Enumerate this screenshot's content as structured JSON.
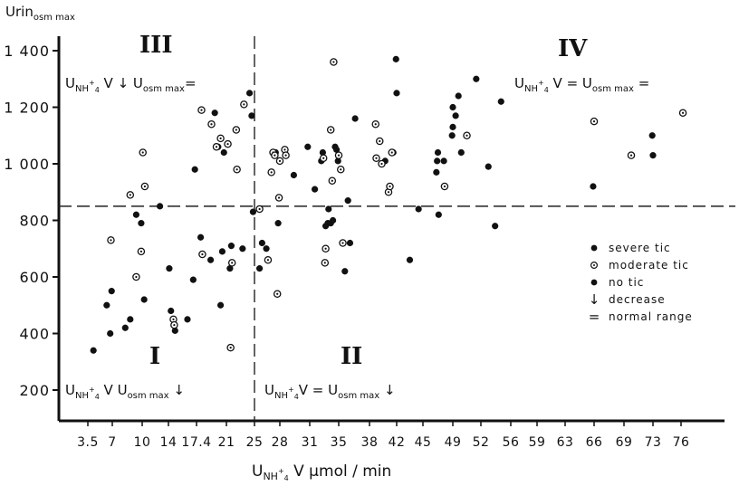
{
  "chart_data": {
    "type": "scatter",
    "title": "",
    "ylabel": "Urin osm max",
    "xlabel": "U NH4+ V  µmol / min",
    "ylim": [
      100,
      1450
    ],
    "yticks": [
      200,
      400,
      600,
      800,
      1000,
      1200,
      1400
    ],
    "ytick_labels": [
      "200",
      "400",
      "600",
      "800",
      "1 000",
      "1 200",
      "1 400"
    ],
    "xticks": [
      "3.5",
      "7",
      "10",
      "14",
      "17.4",
      "21",
      "25",
      "28",
      "31",
      "35",
      "38",
      "42",
      "45",
      "49",
      "52",
      "56",
      "59",
      "63",
      "66",
      "69",
      "73",
      "76"
    ],
    "x_unit": "µmol / min",
    "reference_lines": {
      "x": 25,
      "y": 850
    },
    "quadrants": [
      {
        "numeral": "III",
        "annotation": "U NH4+ V ↓   U osm max ="
      },
      {
        "numeral": "IV",
        "annotation": "U NH4+ V =   U osm max ="
      },
      {
        "numeral": "I",
        "annotation": "U NH4+ V   U osm max ↓"
      },
      {
        "numeral": "II",
        "annotation": "U NH4+ V =   U osm max ↓"
      }
    ],
    "legend": {
      "placement": "right",
      "entries": [
        {
          "symbol": "●",
          "label": "severe tic"
        },
        {
          "symbol": "◎",
          "label": "moderate tic"
        },
        {
          "symbol": "●",
          "label": "no tic"
        },
        {
          "symbol": "↓",
          "label": "decrease"
        },
        {
          "symbol": "=",
          "label": "normal range"
        }
      ]
    },
    "series": [
      {
        "name": "severe tic",
        "marker": "filled",
        "points": [
          [
            4.3,
            340
          ],
          [
            6.2,
            500
          ],
          [
            6.7,
            400
          ],
          [
            6.9,
            550
          ],
          [
            8.3,
            420
          ],
          [
            8.8,
            450
          ],
          [
            9.4,
            820
          ],
          [
            9.9,
            790
          ],
          [
            10.3,
            520
          ],
          [
            12.7,
            850
          ],
          [
            14.1,
            630
          ],
          [
            14.3,
            480
          ],
          [
            14.8,
            410
          ],
          [
            16.3,
            450
          ],
          [
            17.0,
            590
          ],
          [
            17.2,
            980
          ],
          [
            17.9,
            740
          ],
          [
            19.1,
            660
          ],
          [
            19.6,
            1180
          ],
          [
            20.0,
            1060
          ],
          [
            20.3,
            500
          ],
          [
            20.5,
            690
          ],
          [
            20.7,
            1040
          ],
          [
            21.5,
            630
          ],
          [
            21.7,
            710
          ],
          [
            23.3,
            700
          ],
          [
            24.3,
            1250
          ],
          [
            24.6,
            1170
          ],
          [
            24.8,
            830
          ],
          [
            25.6,
            630
          ],
          [
            25.9,
            720
          ],
          [
            26.4,
            700
          ],
          [
            27.5,
            1040
          ],
          [
            27.8,
            790
          ],
          [
            29.4,
            960
          ],
          [
            30.8,
            1060
          ],
          [
            31.7,
            910
          ],
          [
            32.6,
            1010
          ],
          [
            32.8,
            1040
          ],
          [
            33.2,
            780
          ],
          [
            33.5,
            790
          ],
          [
            33.6,
            840
          ],
          [
            33.9,
            790
          ],
          [
            34.2,
            800
          ],
          [
            34.5,
            1060
          ],
          [
            34.7,
            1050
          ],
          [
            34.9,
            1010
          ],
          [
            35.6,
            620
          ],
          [
            35.9,
            870
          ],
          [
            36.1,
            720
          ],
          [
            36.6,
            1160
          ],
          [
            40.3,
            1010
          ],
          [
            41.5,
            1040
          ],
          [
            41.9,
            1370
          ],
          [
            42.0,
            1250
          ],
          [
            43.5,
            660
          ],
          [
            44.5,
            840
          ],
          [
            46.8,
            970
          ],
          [
            46.9,
            1010
          ],
          [
            47.0,
            1040
          ],
          [
            47.1,
            820
          ],
          [
            47.8,
            1010
          ],
          [
            48.9,
            1100
          ],
          [
            49.0,
            1130
          ],
          [
            49.0,
            1200
          ],
          [
            49.3,
            1170
          ],
          [
            49.6,
            1240
          ],
          [
            49.9,
            1040
          ],
          [
            51.5,
            1300
          ],
          [
            53.0,
            990
          ],
          [
            53.9,
            780
          ],
          [
            54.7,
            1220
          ],
          [
            65.9,
            920
          ],
          [
            72.9,
            1100
          ],
          [
            73.0,
            1030
          ]
        ]
      },
      {
        "name": "moderate tic",
        "marker": "ring",
        "points": [
          [
            6.8,
            730
          ],
          [
            8.8,
            890
          ],
          [
            9.4,
            600
          ],
          [
            9.9,
            690
          ],
          [
            10.1,
            1040
          ],
          [
            10.4,
            920
          ],
          [
            14.6,
            450
          ],
          [
            14.7,
            430
          ],
          [
            18.0,
            1190
          ],
          [
            18.1,
            680
          ],
          [
            19.2,
            1140
          ],
          [
            19.8,
            1060
          ],
          [
            20.3,
            1090
          ],
          [
            21.2,
            1070
          ],
          [
            21.6,
            350
          ],
          [
            21.8,
            650
          ],
          [
            22.4,
            1120
          ],
          [
            22.5,
            980
          ],
          [
            23.5,
            1210
          ],
          [
            25.6,
            840
          ],
          [
            26.6,
            660
          ],
          [
            27.0,
            970
          ],
          [
            27.2,
            1040
          ],
          [
            27.4,
            1030
          ],
          [
            27.7,
            540
          ],
          [
            27.9,
            880
          ],
          [
            28.0,
            1010
          ],
          [
            28.5,
            1050
          ],
          [
            28.6,
            1030
          ],
          [
            32.9,
            1020
          ],
          [
            33.1,
            650
          ],
          [
            33.2,
            700
          ],
          [
            33.9,
            1120
          ],
          [
            34.1,
            940
          ],
          [
            34.3,
            1360
          ],
          [
            35.0,
            1030
          ],
          [
            35.2,
            980
          ],
          [
            35.4,
            720
          ],
          [
            38.9,
            1140
          ],
          [
            39.0,
            1020
          ],
          [
            39.5,
            1080
          ],
          [
            39.8,
            1000
          ],
          [
            40.8,
            900
          ],
          [
            41.0,
            920
          ],
          [
            41.3,
            1040
          ],
          [
            47.9,
            920
          ],
          [
            50.5,
            1100
          ],
          [
            66.0,
            1150
          ],
          [
            70.0,
            1030
          ],
          [
            76.2,
            1180
          ]
        ]
      }
    ]
  }
}
